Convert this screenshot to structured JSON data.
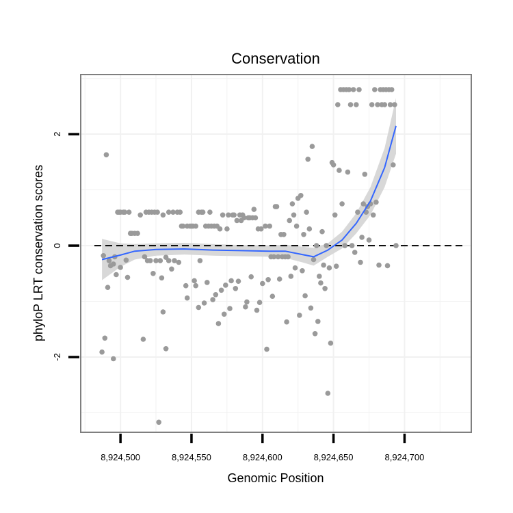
{
  "chart_data": {
    "type": "scatter",
    "title": "Conservation",
    "xlabel": "Genomic Position",
    "ylabel": "phyloP LRT conservation scores",
    "xlim": [
      8924472,
      8924747
    ],
    "ylim": [
      -3.35,
      3.07
    ],
    "x_ticks": [
      8924500,
      8924550,
      8924600,
      8924650,
      8924700
    ],
    "x_tick_labels": [
      "8,924,500",
      "8,924,550",
      "8,924,600",
      "8,924,650",
      "8,924,700"
    ],
    "y_ticks": [
      -2,
      0,
      2
    ],
    "y_tick_labels": [
      "-2",
      "0",
      "2"
    ],
    "reference_line": {
      "y": 0,
      "style": "dashed"
    },
    "colors": {
      "points": "#9a9a9a",
      "smooth": "#3366ff",
      "ribbon": "#d4d4d4",
      "panel_border": "#7f7f7f",
      "grid": "#f1f1f1"
    },
    "points": [
      {
        "x": 8924487,
        "y": -1.91
      },
      {
        "x": 8924488,
        "y": -0.18
      },
      {
        "x": 8924489,
        "y": -1.66
      },
      {
        "x": 8924490,
        "y": 1.63
      },
      {
        "x": 8924491,
        "y": -0.75
      },
      {
        "x": 8924492,
        "y": -0.27
      },
      {
        "x": 8924493,
        "y": -0.36
      },
      {
        "x": 8924495,
        "y": -2.03
      },
      {
        "x": 8924495,
        "y": -0.33
      },
      {
        "x": 8924496,
        "y": -0.2
      },
      {
        "x": 8924497,
        "y": -0.52
      },
      {
        "x": 8924498,
        "y": 0.6
      },
      {
        "x": 8924499,
        "y": 0.6
      },
      {
        "x": 8924500,
        "y": 0.6
      },
      {
        "x": 8924500,
        "y": -0.39
      },
      {
        "x": 8924502,
        "y": 0.6
      },
      {
        "x": 8924503,
        "y": 0.6
      },
      {
        "x": 8924504,
        "y": -0.26
      },
      {
        "x": 8924505,
        "y": -0.57
      },
      {
        "x": 8924506,
        "y": 0.6
      },
      {
        "x": 8924507,
        "y": 0.22
      },
      {
        "x": 8924508,
        "y": 0.22
      },
      {
        "x": 8924510,
        "y": 0.22
      },
      {
        "x": 8924512,
        "y": 0.22
      },
      {
        "x": 8924514,
        "y": 0.55
      },
      {
        "x": 8924516,
        "y": -1.68
      },
      {
        "x": 8924517,
        "y": -0.2
      },
      {
        "x": 8924518,
        "y": 0.6
      },
      {
        "x": 8924519,
        "y": -0.27
      },
      {
        "x": 8924520,
        "y": 0.6
      },
      {
        "x": 8924521,
        "y": -0.27
      },
      {
        "x": 8924522,
        "y": 0.6
      },
      {
        "x": 8924523,
        "y": -0.5
      },
      {
        "x": 8924524,
        "y": 0.6
      },
      {
        "x": 8924525,
        "y": -0.27
      },
      {
        "x": 8924526,
        "y": 0.6
      },
      {
        "x": 8924527,
        "y": -3.17
      },
      {
        "x": 8924528,
        "y": -0.27
      },
      {
        "x": 8924529,
        "y": -0.58
      },
      {
        "x": 8924530,
        "y": 0.55
      },
      {
        "x": 8924530,
        "y": -1.19
      },
      {
        "x": 8924532,
        "y": -1.85
      },
      {
        "x": 8924532,
        "y": -0.21
      },
      {
        "x": 8924534,
        "y": 0.6
      },
      {
        "x": 8924534,
        "y": -0.27
      },
      {
        "x": 8924536,
        "y": -0.42
      },
      {
        "x": 8924537,
        "y": 0.6
      },
      {
        "x": 8924538,
        "y": -0.27
      },
      {
        "x": 8924540,
        "y": 0.6
      },
      {
        "x": 8924541,
        "y": -0.3
      },
      {
        "x": 8924542,
        "y": 0.6
      },
      {
        "x": 8924543,
        "y": 0.35
      },
      {
        "x": 8924544,
        "y": 0.35
      },
      {
        "x": 8924546,
        "y": -0.72
      },
      {
        "x": 8924547,
        "y": 0.35
      },
      {
        "x": 8924547,
        "y": -0.94
      },
      {
        "x": 8924549,
        "y": 0.35
      },
      {
        "x": 8924550,
        "y": 0.35
      },
      {
        "x": 8924551,
        "y": 0.35
      },
      {
        "x": 8924552,
        "y": -0.63
      },
      {
        "x": 8924553,
        "y": 0.35
      },
      {
        "x": 8924553,
        "y": -0.72
      },
      {
        "x": 8924555,
        "y": 0.6
      },
      {
        "x": 8924555,
        "y": -1.11
      },
      {
        "x": 8924556,
        "y": -0.27
      },
      {
        "x": 8924557,
        "y": 0.6
      },
      {
        "x": 8924558,
        "y": 0.6
      },
      {
        "x": 8924559,
        "y": -1.03
      },
      {
        "x": 8924560,
        "y": 0.35
      },
      {
        "x": 8924561,
        "y": -0.66
      },
      {
        "x": 8924562,
        "y": 0.35
      },
      {
        "x": 8924563,
        "y": 0.6
      },
      {
        "x": 8924564,
        "y": 0.35
      },
      {
        "x": 8924565,
        "y": -0.97
      },
      {
        "x": 8924566,
        "y": 0.35
      },
      {
        "x": 8924567,
        "y": -0.88
      },
      {
        "x": 8924568,
        "y": 0.35
      },
      {
        "x": 8924569,
        "y": -1.4
      },
      {
        "x": 8924570,
        "y": 0.3
      },
      {
        "x": 8924571,
        "y": -0.8
      },
      {
        "x": 8924572,
        "y": 0.55
      },
      {
        "x": 8924573,
        "y": -1.23
      },
      {
        "x": 8924574,
        "y": -0.71
      },
      {
        "x": 8924575,
        "y": 0.3
      },
      {
        "x": 8924576,
        "y": 0.55
      },
      {
        "x": 8924577,
        "y": -1.13
      },
      {
        "x": 8924578,
        "y": -0.63
      },
      {
        "x": 8924579,
        "y": 0.55
      },
      {
        "x": 8924580,
        "y": 0.55
      },
      {
        "x": 8924581,
        "y": -0.77
      },
      {
        "x": 8924582,
        "y": 0.45
      },
      {
        "x": 8924583,
        "y": -0.64
      },
      {
        "x": 8924584,
        "y": 0.55
      },
      {
        "x": 8924585,
        "y": 0.45
      },
      {
        "x": 8924586,
        "y": 0.55
      },
      {
        "x": 8924587,
        "y": 0.5
      },
      {
        "x": 8924588,
        "y": -1.1
      },
      {
        "x": 8924589,
        "y": -1.01
      },
      {
        "x": 8924590,
        "y": 0.5
      },
      {
        "x": 8924591,
        "y": 0.5
      },
      {
        "x": 8924592,
        "y": -0.56
      },
      {
        "x": 8924593,
        "y": 0.5
      },
      {
        "x": 8924594,
        "y": 0.65
      },
      {
        "x": 8924595,
        "y": 0.5
      },
      {
        "x": 8924596,
        "y": -1.16
      },
      {
        "x": 8924597,
        "y": 0.3
      },
      {
        "x": 8924598,
        "y": -1.02
      },
      {
        "x": 8924599,
        "y": 0.3
      },
      {
        "x": 8924600,
        "y": -0.68
      },
      {
        "x": 8924602,
        "y": 0.35
      },
      {
        "x": 8924603,
        "y": -1.86
      },
      {
        "x": 8924604,
        "y": -0.61
      },
      {
        "x": 8924605,
        "y": 0.35
      },
      {
        "x": 8924606,
        "y": -0.2
      },
      {
        "x": 8924607,
        "y": -0.91
      },
      {
        "x": 8924608,
        "y": -0.2
      },
      {
        "x": 8924609,
        "y": 0.7
      },
      {
        "x": 8924610,
        "y": 0.7
      },
      {
        "x": 8924611,
        "y": -0.2
      },
      {
        "x": 8924612,
        "y": -0.6
      },
      {
        "x": 8924613,
        "y": 0.2
      },
      {
        "x": 8924614,
        "y": -0.2
      },
      {
        "x": 8924615,
        "y": 0.2
      },
      {
        "x": 8924616,
        "y": -0.2
      },
      {
        "x": 8924617,
        "y": -1.37
      },
      {
        "x": 8924618,
        "y": -0.2
      },
      {
        "x": 8924619,
        "y": 0.45
      },
      {
        "x": 8924620,
        "y": -0.55
      },
      {
        "x": 8924621,
        "y": 0.75
      },
      {
        "x": 8924622,
        "y": 0.55
      },
      {
        "x": 8924623,
        "y": -0.4
      },
      {
        "x": 8924624,
        "y": 0.35
      },
      {
        "x": 8924625,
        "y": 0.85
      },
      {
        "x": 8924626,
        "y": -1.25
      },
      {
        "x": 8924627,
        "y": 0.9
      },
      {
        "x": 8924628,
        "y": -0.45
      },
      {
        "x": 8924629,
        "y": 0.2
      },
      {
        "x": 8924630,
        "y": -0.9
      },
      {
        "x": 8924631,
        "y": 0.6
      },
      {
        "x": 8924632,
        "y": 1.55
      },
      {
        "x": 8924633,
        "y": 0.3
      },
      {
        "x": 8924634,
        "y": -1.12
      },
      {
        "x": 8924635,
        "y": 1.78
      },
      {
        "x": 8924636,
        "y": -0.25
      },
      {
        "x": 8924637,
        "y": -1.58
      },
      {
        "x": 8924638,
        "y": 0.0
      },
      {
        "x": 8924639,
        "y": -1.36
      },
      {
        "x": 8924640,
        "y": -0.55
      },
      {
        "x": 8924641,
        "y": -0.67
      },
      {
        "x": 8924642,
        "y": 0.25
      },
      {
        "x": 8924643,
        "y": -0.35
      },
      {
        "x": 8924644,
        "y": -0.77
      },
      {
        "x": 8924645,
        "y": 0.0
      },
      {
        "x": 8924646,
        "y": -2.65
      },
      {
        "x": 8924647,
        "y": -0.4
      },
      {
        "x": 8924648,
        "y": -1.75
      },
      {
        "x": 8924649,
        "y": 1.49
      },
      {
        "x": 8924650,
        "y": 1.45
      },
      {
        "x": 8924651,
        "y": 0.55
      },
      {
        "x": 8924652,
        "y": -0.37
      },
      {
        "x": 8924653,
        "y": 2.53
      },
      {
        "x": 8924654,
        "y": 1.35
      },
      {
        "x": 8924655,
        "y": 2.8
      },
      {
        "x": 8924656,
        "y": 0.75
      },
      {
        "x": 8924657,
        "y": 2.8
      },
      {
        "x": 8924658,
        "y": 0.0
      },
      {
        "x": 8924659,
        "y": 2.8
      },
      {
        "x": 8924660,
        "y": 1.32
      },
      {
        "x": 8924661,
        "y": 2.8
      },
      {
        "x": 8924662,
        "y": 2.53
      },
      {
        "x": 8924663,
        "y": 0.0
      },
      {
        "x": 8924664,
        "y": 2.8
      },
      {
        "x": 8924665,
        "y": -0.12
      },
      {
        "x": 8924666,
        "y": 2.53
      },
      {
        "x": 8924667,
        "y": 0.6
      },
      {
        "x": 8924668,
        "y": 2.8
      },
      {
        "x": 8924669,
        "y": -0.3
      },
      {
        "x": 8924670,
        "y": 0.15
      },
      {
        "x": 8924671,
        "y": 0.75
      },
      {
        "x": 8924672,
        "y": 1.28
      },
      {
        "x": 8924673,
        "y": 0.6
      },
      {
        "x": 8924674,
        "y": 0.7
      },
      {
        "x": 8924675,
        "y": 0.1
      },
      {
        "x": 8924676,
        "y": 0.75
      },
      {
        "x": 8924677,
        "y": 2.53
      },
      {
        "x": 8924678,
        "y": 0.55
      },
      {
        "x": 8924679,
        "y": 2.8
      },
      {
        "x": 8924680,
        "y": 0.78
      },
      {
        "x": 8924681,
        "y": 2.53
      },
      {
        "x": 8924682,
        "y": -0.35
      },
      {
        "x": 8924683,
        "y": 2.8
      },
      {
        "x": 8924684,
        "y": 2.53
      },
      {
        "x": 8924685,
        "y": 2.8
      },
      {
        "x": 8924686,
        "y": 2.53
      },
      {
        "x": 8924687,
        "y": 2.8
      },
      {
        "x": 8924688,
        "y": -0.36
      },
      {
        "x": 8924689,
        "y": 2.8
      },
      {
        "x": 8924690,
        "y": 2.53
      },
      {
        "x": 8924691,
        "y": 2.8
      },
      {
        "x": 8924692,
        "y": 1.45
      },
      {
        "x": 8924693,
        "y": 2.53
      },
      {
        "x": 8924694,
        "y": 0.0
      }
    ],
    "smooth": {
      "x": [
        8924487,
        8924500,
        8924510,
        8924525,
        8924545,
        8924565,
        8924585,
        8924605,
        8924616,
        8924628,
        8924636,
        8924646,
        8924656,
        8924666,
        8924676,
        8924686,
        8924694
      ],
      "y": [
        -0.25,
        -0.17,
        -0.1,
        -0.07,
        -0.06,
        -0.08,
        -0.09,
        -0.1,
        -0.1,
        -0.16,
        -0.2,
        -0.08,
        0.1,
        0.4,
        0.8,
        1.4,
        2.15
      ],
      "ribbon_lower": [
        -0.62,
        -0.38,
        -0.25,
        -0.18,
        -0.16,
        -0.18,
        -0.19,
        -0.2,
        -0.22,
        -0.3,
        -0.36,
        -0.2,
        -0.05,
        0.22,
        0.55,
        1.05,
        1.65
      ],
      "ribbon_upper": [
        0.12,
        0.04,
        0.03,
        0.04,
        0.05,
        0.03,
        0.01,
        0.0,
        0.02,
        -0.02,
        -0.04,
        0.04,
        0.25,
        0.58,
        1.05,
        1.75,
        2.65
      ]
    }
  }
}
